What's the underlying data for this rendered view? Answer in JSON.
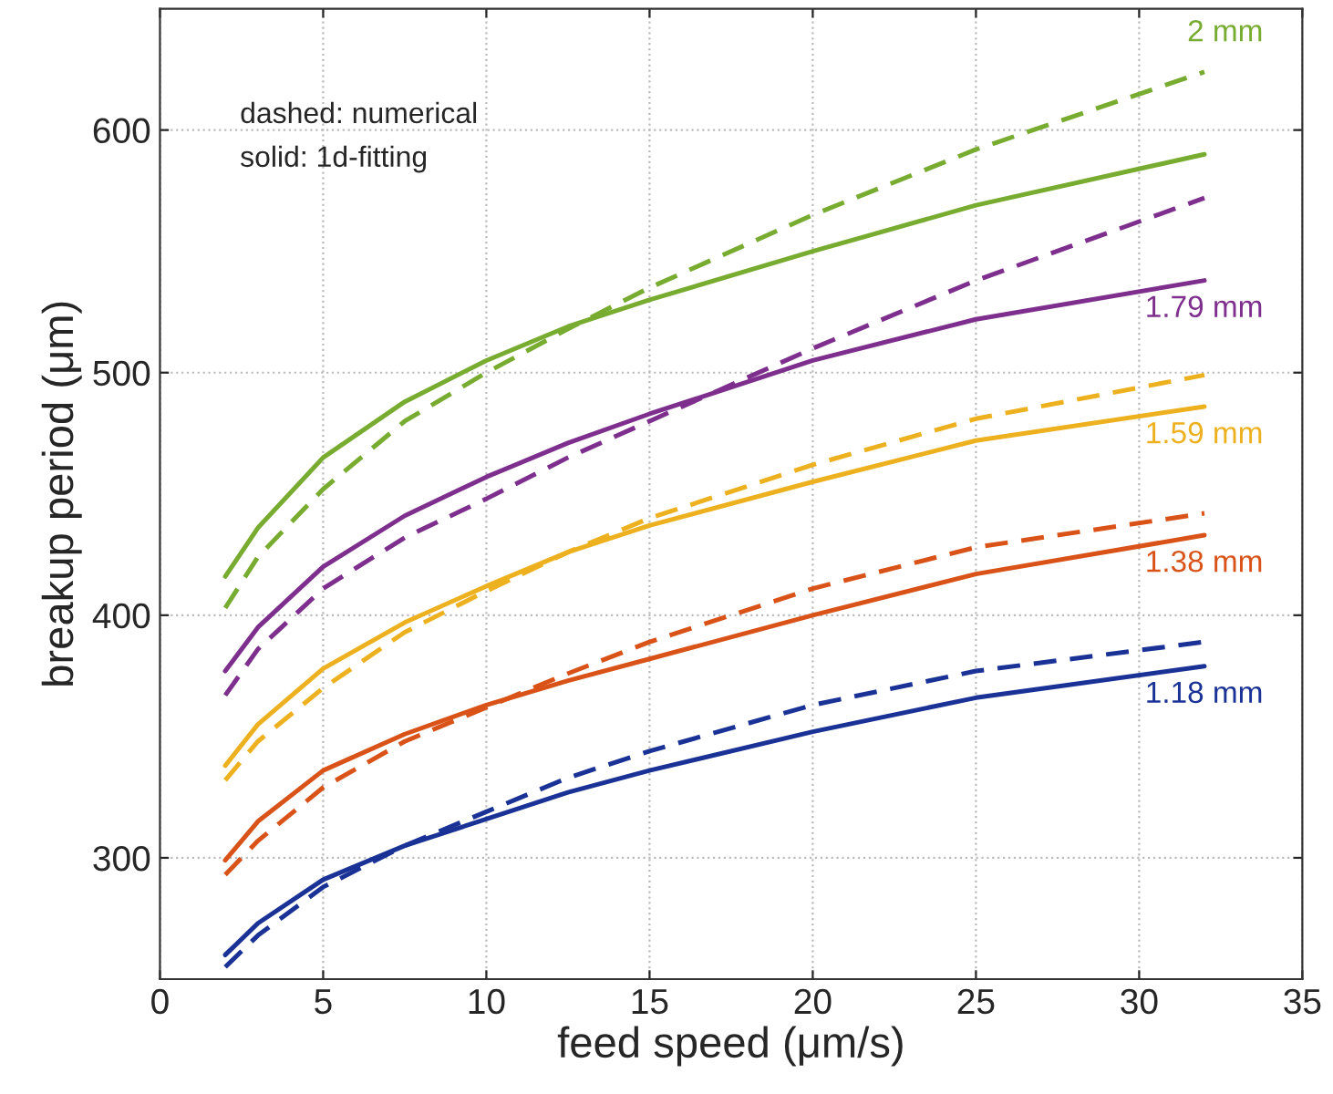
{
  "chart_data": {
    "type": "line",
    "xlabel": "feed speed (μm/s)",
    "ylabel": "breakup period (μm)",
    "x": [
      2,
      3,
      5,
      7.5,
      10,
      12.5,
      15,
      20,
      25,
      32
    ],
    "series": [
      {
        "name": "2 mm",
        "color": "#77ac30",
        "line_style": "solid",
        "values": [
          416,
          436,
          465,
          488,
          505,
          519,
          530,
          550,
          569,
          590
        ]
      },
      {
        "color": "#77ac30",
        "line_style": "dashed",
        "values": [
          403,
          424,
          452,
          480,
          500,
          518,
          535,
          565,
          592,
          624
        ]
      },
      {
        "name": "1.79 mm",
        "color": "#7e2f8e",
        "line_style": "solid",
        "values": [
          377,
          395,
          420,
          441,
          457,
          471,
          483,
          505,
          522,
          538
        ]
      },
      {
        "color": "#7e2f8e",
        "line_style": "dashed",
        "values": [
          367,
          386,
          411,
          432,
          448,
          465,
          480,
          510,
          538,
          572
        ]
      },
      {
        "name": "1.59 mm",
        "color": "#edb120",
        "line_style": "solid",
        "values": [
          338,
          355,
          378,
          397,
          412,
          426,
          437,
          455,
          472,
          486
        ]
      },
      {
        "color": "#edb120",
        "line_style": "dashed",
        "values": [
          332,
          348,
          370,
          393,
          410,
          426,
          440,
          462,
          481,
          499
        ]
      },
      {
        "name": "1.38 mm",
        "color": "#d95319",
        "line_style": "solid",
        "values": [
          299,
          315,
          336,
          351,
          363,
          373,
          382,
          400,
          417,
          433
        ]
      },
      {
        "color": "#d95319",
        "line_style": "dashed",
        "values": [
          293,
          307,
          329,
          348,
          362,
          376,
          389,
          411,
          428,
          442
        ]
      },
      {
        "name": "1.18 mm",
        "color": "#1a3296",
        "line_style": "solid",
        "values": [
          260,
          273,
          291,
          305,
          316,
          327,
          336,
          352,
          366,
          379
        ]
      },
      {
        "color": "#1a3296",
        "line_style": "dashed",
        "values": [
          255,
          268,
          288,
          305,
          319,
          333,
          344,
          363,
          377,
          389
        ]
      }
    ],
    "annotations": [
      "dashed: numerical",
      "solid: 1d-fitting"
    ],
    "xlim": [
      0,
      35
    ],
    "xticks": [
      0,
      5,
      10,
      15,
      20,
      25,
      30,
      35
    ],
    "ylim": [
      250,
      650
    ],
    "yticks": [
      300,
      400,
      500,
      600
    ],
    "grid": true,
    "legend": false,
    "marker": "none"
  }
}
